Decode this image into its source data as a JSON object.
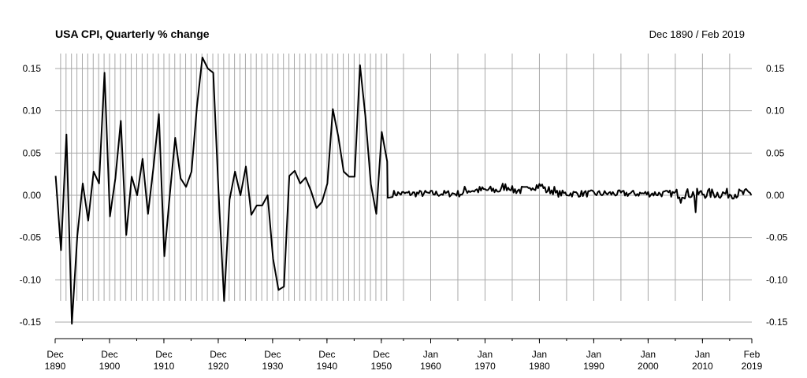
{
  "chart_data": {
    "type": "line",
    "title": "USA CPI, Quarterly % change",
    "date_range": "Dec 1890 / Feb 2019",
    "xlabel": "",
    "ylabel": "",
    "ylim": [
      -0.17,
      0.165
    ],
    "grid": true,
    "y_ticks": [
      {
        "value": 0.15,
        "label": "0.15"
      },
      {
        "value": 0.1,
        "label": "0.10"
      },
      {
        "value": 0.05,
        "label": "0.05"
      },
      {
        "value": 0.0,
        "label": "0.00"
      },
      {
        "value": -0.05,
        "label": "-0.05"
      },
      {
        "value": -0.1,
        "label": "-0.10"
      },
      {
        "value": -0.15,
        "label": "-0.15"
      }
    ],
    "x_ticks": [
      {
        "year": 1890.92,
        "line1": "Dec",
        "line2": "1890"
      },
      {
        "year": 1900.92,
        "line1": "Dec",
        "line2": "1900"
      },
      {
        "year": 1910.92,
        "line1": "Dec",
        "line2": "1910"
      },
      {
        "year": 1920.92,
        "line1": "Dec",
        "line2": "1920"
      },
      {
        "year": 1930.92,
        "line1": "Dec",
        "line2": "1930"
      },
      {
        "year": 1940.92,
        "line1": "Dec",
        "line2": "1940"
      },
      {
        "year": 1950.92,
        "line1": "Dec",
        "line2": "1950"
      },
      {
        "year": 1960.0,
        "line1": "Jan",
        "line2": "1960"
      },
      {
        "year": 1970.0,
        "line1": "Jan",
        "line2": "1970"
      },
      {
        "year": 1980.0,
        "line1": "Jan",
        "line2": "1980"
      },
      {
        "year": 1990.0,
        "line1": "Jan",
        "line2": "1990"
      },
      {
        "year": 2000.0,
        "line1": "Jan",
        "line2": "2000"
      },
      {
        "year": 2010.0,
        "line1": "Jan",
        "line2": "2010"
      },
      {
        "year": 2019.08,
        "line1": "Feb",
        "line2": "2019"
      }
    ],
    "series": [
      {
        "x": [
          1891.0,
          1892.0,
          1893.0,
          1894.0,
          1895.0,
          1896.0,
          1897.0,
          1898.0,
          1899.0,
          1900.0,
          1901.0,
          1902.0,
          1903.0,
          1904.0,
          1905.0,
          1906.0,
          1907.0,
          1908.0,
          1909.0,
          1910.0,
          1911.0,
          1912.0,
          1913.0,
          1914.0,
          1915.0,
          1916.0,
          1917.0,
          1918.0,
          1919.0,
          1920.0,
          1921.0,
          1922.0,
          1923.0,
          1924.0,
          1925.0,
          1926.0,
          1927.0,
          1928.0,
          1929.0,
          1930.0,
          1931.0,
          1932.0,
          1933.0,
          1934.0,
          1935.0,
          1936.0,
          1937.0,
          1938.0,
          1939.0,
          1940.0,
          1941.0,
          1942.0,
          1943.0,
          1944.0,
          1945.0,
          1946.0,
          1947.0,
          1948.0,
          1949.0,
          1950.0,
          1951.0,
          1952.0
        ],
        "y": [
          0.023,
          -0.065,
          0.072,
          -0.152,
          -0.048,
          0.014,
          -0.03,
          0.028,
          0.014,
          0.145,
          -0.025,
          0.02,
          0.088,
          -0.047,
          0.022,
          0.0,
          0.043,
          -0.022,
          0.033,
          0.096,
          -0.072,
          0.0,
          0.068,
          0.02,
          0.01,
          0.028,
          0.105,
          0.163,
          0.15,
          0.145,
          0.0,
          -0.125,
          -0.005,
          0.028,
          0.0,
          0.034,
          -0.023,
          -0.012,
          -0.012,
          0.0,
          -0.075,
          -0.112,
          -0.108,
          0.023,
          0.029,
          0.014,
          0.021,
          0.005,
          -0.015,
          -0.008,
          0.014,
          0.102,
          0.07,
          0.028,
          0.022,
          0.022,
          0.154,
          0.093,
          0.013,
          -0.022,
          0.075,
          0.04
        ]
      }
    ],
    "quarterly_from": 1953.0,
    "quarterly_to": 2019.08,
    "quarterly_level_note": ""
  }
}
